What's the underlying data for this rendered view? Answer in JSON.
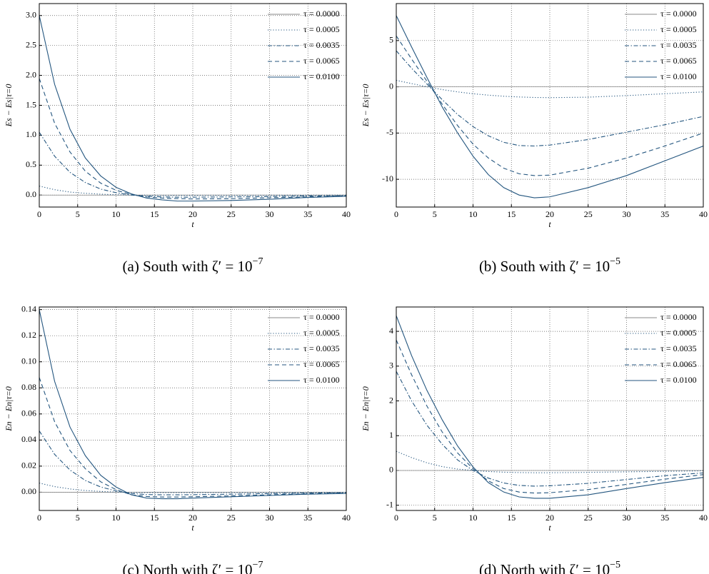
{
  "chart_data": [
    {
      "type": "line",
      "caption": "(a) South with ζ′ = 10",
      "caption_exponent": "−7",
      "ylabel": "Es − Es|τ=0",
      "xlabel": "t",
      "x": [
        0,
        2,
        4,
        6,
        8,
        10,
        12,
        14,
        16,
        18,
        20,
        25,
        30,
        35,
        40
      ],
      "xlim": [
        0,
        40
      ],
      "xticks": [
        0,
        5,
        10,
        15,
        20,
        25,
        30,
        35,
        40
      ],
      "ylim": [
        -0.2,
        3.2
      ],
      "yticks": [
        {
          "value": 0,
          "label": "0.0"
        },
        {
          "value": 0.5,
          "label": "0.5"
        },
        {
          "value": 1,
          "label": "1.0"
        },
        {
          "value": 1.5,
          "label": "1.5"
        },
        {
          "value": 2,
          "label": "2.0"
        },
        {
          "value": 2.5,
          "label": "2.5"
        },
        {
          "value": 3,
          "label": "3.0"
        }
      ],
      "grid": true,
      "legend": "upper right",
      "series": [
        {
          "name": "τ = 0.0000",
          "color": "#888888",
          "dash": "solid",
          "values": [
            0,
            0,
            0,
            0,
            0,
            0,
            0,
            0,
            0,
            0,
            0,
            0,
            0,
            0,
            0
          ]
        },
        {
          "name": "τ = 0.0005",
          "color": "#24567f",
          "dash": "dotted",
          "values": [
            0.15,
            0.09,
            0.05,
            0.03,
            0.015,
            0.005,
            0,
            -0.003,
            -0.005,
            -0.005,
            -0.005,
            -0.004,
            -0.003,
            -0.002,
            -0.001
          ]
        },
        {
          "name": "τ = 0.0035",
          "color": "#24567f",
          "dash": "dashdot",
          "values": [
            1.05,
            0.65,
            0.38,
            0.21,
            0.1,
            0.04,
            0,
            -0.02,
            -0.03,
            -0.035,
            -0.035,
            -0.03,
            -0.025,
            -0.015,
            -0.01
          ]
        },
        {
          "name": "τ = 0.0065",
          "color": "#24567f",
          "dash": "dashed",
          "values": [
            1.95,
            1.2,
            0.72,
            0.4,
            0.2,
            0.08,
            0.01,
            -0.03,
            -0.05,
            -0.06,
            -0.065,
            -0.06,
            -0.045,
            -0.03,
            -0.015
          ]
        },
        {
          "name": "τ = 0.0100",
          "color": "#24567f",
          "dash": "solid",
          "values": [
            3.0,
            1.85,
            1.1,
            0.62,
            0.32,
            0.13,
            0.02,
            -0.05,
            -0.08,
            -0.1,
            -0.1,
            -0.09,
            -0.07,
            -0.04,
            -0.02
          ]
        }
      ]
    },
    {
      "type": "line",
      "caption": "(b) South with ζ′ = 10",
      "caption_exponent": "−5",
      "ylabel": "Es − Es|τ=0",
      "xlabel": "t",
      "x": [
        0,
        2,
        4,
        6,
        8,
        10,
        12,
        14,
        16,
        18,
        20,
        25,
        30,
        35,
        40
      ],
      "xlim": [
        0,
        40
      ],
      "xticks": [
        0,
        5,
        10,
        15,
        20,
        25,
        30,
        35,
        40
      ],
      "ylim": [
        -13,
        9
      ],
      "yticks": [
        -10,
        -5,
        0,
        5
      ],
      "grid": true,
      "legend": "upper right",
      "series": [
        {
          "name": "τ = 0.0000",
          "color": "#888888",
          "dash": "solid",
          "values": [
            0,
            0,
            0,
            0,
            0,
            0,
            0,
            0,
            0,
            0,
            0,
            0,
            0,
            0,
            0
          ]
        },
        {
          "name": "τ = 0.0005",
          "color": "#24567f",
          "dash": "dotted",
          "values": [
            0.7,
            0.35,
            0,
            -0.3,
            -0.55,
            -0.75,
            -0.9,
            -1.02,
            -1.1,
            -1.15,
            -1.17,
            -1.12,
            -0.95,
            -0.75,
            -0.55
          ]
        },
        {
          "name": "τ = 0.0035",
          "color": "#24567f",
          "dash": "dashdot",
          "values": [
            3.9,
            2.0,
            0.3,
            -1.4,
            -3.0,
            -4.3,
            -5.3,
            -6.0,
            -6.35,
            -6.4,
            -6.3,
            -5.7,
            -4.9,
            -4.1,
            -3.2
          ]
        },
        {
          "name": "τ = 0.0065",
          "color": "#24567f",
          "dash": "dashed",
          "values": [
            5.5,
            3.0,
            0.6,
            -1.9,
            -4.2,
            -6.2,
            -7.7,
            -8.8,
            -9.4,
            -9.6,
            -9.55,
            -8.8,
            -7.7,
            -6.4,
            -5.0
          ]
        },
        {
          "name": "τ = 0.0100",
          "color": "#24567f",
          "dash": "solid",
          "values": [
            7.7,
            4.3,
            1.0,
            -2.2,
            -5.0,
            -7.5,
            -9.5,
            -10.9,
            -11.7,
            -12.0,
            -11.9,
            -10.9,
            -9.6,
            -8.0,
            -6.4
          ]
        }
      ]
    },
    {
      "type": "line",
      "caption": "(c) North with ζ′ = 10",
      "caption_exponent": "−7",
      "ylabel": "En − En|τ=0",
      "xlabel": "t",
      "x": [
        0,
        2,
        4,
        6,
        8,
        10,
        12,
        14,
        16,
        18,
        20,
        25,
        30,
        35,
        40
      ],
      "xlim": [
        0,
        40
      ],
      "xticks": [
        0,
        5,
        10,
        15,
        20,
        25,
        30,
        35,
        40
      ],
      "ylim": [
        -0.014,
        0.142
      ],
      "yticks": [
        {
          "value": 0,
          "label": "0.00"
        },
        {
          "value": 0.02,
          "label": "0.02"
        },
        {
          "value": 0.04,
          "label": "0.04"
        },
        {
          "value": 0.06,
          "label": "0.06"
        },
        {
          "value": 0.08,
          "label": "0.08"
        },
        {
          "value": 0.1,
          "label": "0.10"
        },
        {
          "value": 0.12,
          "label": "0.12"
        },
        {
          "value": 0.14,
          "label": "0.14"
        }
      ],
      "grid": true,
      "legend": "upper right",
      "series": [
        {
          "name": "τ = 0.0000",
          "color": "#888888",
          "dash": "solid",
          "values": [
            0,
            0,
            0,
            0,
            0,
            0,
            0,
            0,
            0,
            0,
            0,
            0,
            0,
            0,
            0
          ]
        },
        {
          "name": "τ = 0.0005",
          "color": "#24567f",
          "dash": "dotted",
          "values": [
            0.007,
            0.0043,
            0.0025,
            0.0013,
            0.0006,
            0.0001,
            -0.0002,
            -0.0003,
            -0.0003,
            -0.0003,
            -0.0003,
            -0.0002,
            -0.0002,
            -0.0001,
            -0.0001
          ]
        },
        {
          "name": "τ = 0.0035",
          "color": "#24567f",
          "dash": "dashdot",
          "values": [
            0.047,
            0.029,
            0.017,
            0.009,
            0.004,
            0.001,
            -0.001,
            -0.0018,
            -0.002,
            -0.002,
            -0.0019,
            -0.0015,
            -0.0011,
            -0.0007,
            -0.0004
          ]
        },
        {
          "name": "τ = 0.0065",
          "color": "#24567f",
          "dash": "dashed",
          "values": [
            0.088,
            0.054,
            0.032,
            0.018,
            0.008,
            0.002,
            -0.002,
            -0.0033,
            -0.0037,
            -0.0037,
            -0.0035,
            -0.0028,
            -0.002,
            -0.0012,
            -0.0008
          ]
        },
        {
          "name": "τ = 0.0100",
          "color": "#24567f",
          "dash": "solid",
          "values": [
            0.14,
            0.085,
            0.05,
            0.028,
            0.013,
            0.004,
            -0.002,
            -0.0045,
            -0.005,
            -0.005,
            -0.0045,
            -0.0035,
            -0.0025,
            -0.0015,
            -0.001
          ]
        }
      ]
    },
    {
      "type": "line",
      "caption": "(d) North with ζ′ = 10",
      "caption_exponent": "−5",
      "ylabel": "En − En|τ=0",
      "xlabel": "t",
      "x": [
        0,
        2,
        4,
        6,
        8,
        10,
        12,
        14,
        16,
        18,
        20,
        25,
        30,
        35,
        40
      ],
      "xlim": [
        0,
        40
      ],
      "xticks": [
        0,
        5,
        10,
        15,
        20,
        25,
        30,
        35,
        40
      ],
      "ylim": [
        -1.15,
        4.7
      ],
      "yticks": [
        -1,
        0,
        1,
        2,
        3,
        4
      ],
      "grid": true,
      "legend": "upper right",
      "series": [
        {
          "name": "τ = 0.0000",
          "color": "#888888",
          "dash": "solid",
          "values": [
            0,
            0,
            0,
            0,
            0,
            0,
            0,
            0,
            0,
            0,
            0,
            0,
            0,
            0,
            0
          ]
        },
        {
          "name": "τ = 0.0005",
          "color": "#24567f",
          "dash": "dotted",
          "values": [
            0.55,
            0.37,
            0.22,
            0.11,
            0.04,
            0,
            -0.03,
            -0.05,
            -0.06,
            -0.065,
            -0.065,
            -0.055,
            -0.04,
            -0.025,
            -0.01
          ]
        },
        {
          "name": "τ = 0.0035",
          "color": "#24567f",
          "dash": "dashdot",
          "values": [
            2.85,
            2.0,
            1.3,
            0.75,
            0.3,
            0,
            -0.22,
            -0.36,
            -0.43,
            -0.45,
            -0.44,
            -0.37,
            -0.26,
            -0.15,
            -0.07
          ]
        },
        {
          "name": "τ = 0.0065",
          "color": "#24567f",
          "dash": "dashed",
          "values": [
            3.75,
            2.75,
            1.85,
            1.1,
            0.5,
            0.05,
            -0.3,
            -0.52,
            -0.62,
            -0.65,
            -0.64,
            -0.55,
            -0.4,
            -0.25,
            -0.12
          ]
        },
        {
          "name": "τ = 0.0100",
          "color": "#24567f",
          "dash": "solid",
          "values": [
            4.45,
            3.3,
            2.3,
            1.45,
            0.7,
            0.1,
            -0.35,
            -0.62,
            -0.76,
            -0.8,
            -0.8,
            -0.7,
            -0.52,
            -0.35,
            -0.2
          ]
        }
      ]
    }
  ]
}
